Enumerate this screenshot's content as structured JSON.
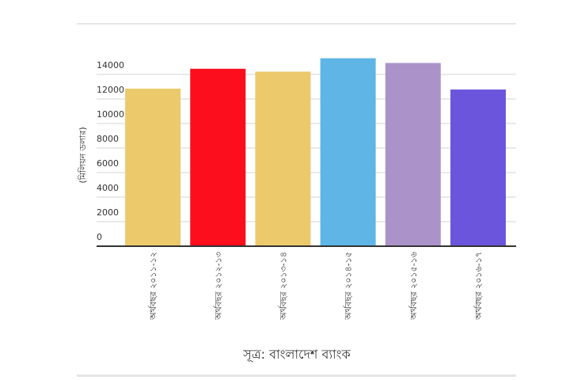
{
  "chart_data": {
    "type": "bar",
    "y_label": "(মিলিয়ন ডলার)",
    "source": "সূত্র: বাংলাদেশ ব্যাংক",
    "categories": [
      "অর্থবছর ২০১১-১২",
      "অর্থবছর ২০১২-১৩",
      "অর্থবছর ২০১৩-১৪",
      "অর্থবছর ২০১৪-১৫",
      "অর্থবছর ২০১৫-১৬",
      "অর্থবছর ২০১৬-১৭"
    ],
    "values": [
      12843,
      14461,
      14228,
      15317,
      14931,
      12769
    ],
    "colors": [
      "#ecc96b",
      "#fc0e1c",
      "#ecc96b",
      "#5eb5e6",
      "#ab93c9",
      "#6b55dc"
    ],
    "ylim": [
      0,
      16000
    ],
    "yticks": [
      0,
      2000,
      4000,
      6000,
      8000,
      10000,
      12000,
      14000
    ],
    "grid": true
  }
}
